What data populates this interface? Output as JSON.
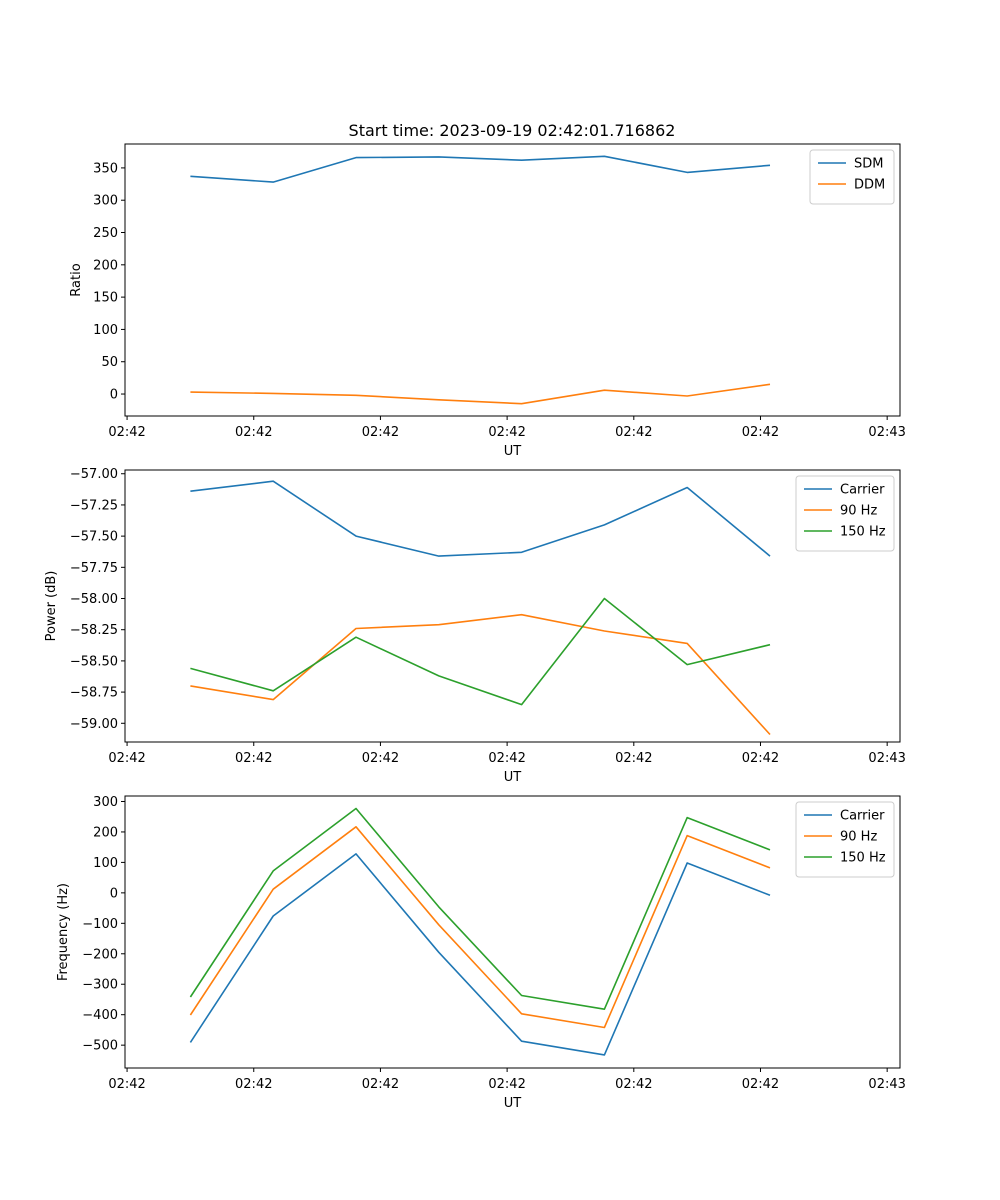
{
  "figure": {
    "title": "Start time: 2023-09-19 02:42:01.716862"
  },
  "chart_data": [
    {
      "type": "line",
      "xlabel": "UT",
      "ylabel": "Ratio",
      "x_index": [
        0,
        1,
        2,
        3,
        4,
        5,
        6,
        7
      ],
      "xlim": [
        -0.79,
        8.57
      ],
      "ylim": [
        -34,
        387
      ],
      "yticks": [
        0,
        50,
        100,
        150,
        200,
        250,
        300,
        350
      ],
      "xticks": [
        {
          "v": -0.765,
          "label": "02:42"
        },
        {
          "v": 0.765,
          "label": "02:42"
        },
        {
          "v": 2.295,
          "label": "02:42"
        },
        {
          "v": 3.825,
          "label": "02:42"
        },
        {
          "v": 5.355,
          "label": "02:42"
        },
        {
          "v": 6.885,
          "label": "02:42"
        },
        {
          "v": 8.415,
          "label": "02:43"
        }
      ],
      "legend_position": "upper right",
      "series": [
        {
          "name": "SDM",
          "color": "#1f77b4",
          "values": [
            337,
            328,
            366,
            367,
            362,
            368,
            343,
            354
          ]
        },
        {
          "name": "DDM",
          "color": "#ff7f0e",
          "values": [
            3,
            1,
            -2,
            -9,
            -15,
            6,
            -3,
            15
          ]
        }
      ]
    },
    {
      "type": "line",
      "xlabel": "UT",
      "ylabel": "Power (dB)",
      "x_index": [
        0,
        1,
        2,
        3,
        4,
        5,
        6,
        7
      ],
      "xlim": [
        -0.79,
        8.57
      ],
      "ylim": [
        -59.15,
        -56.97
      ],
      "yticks": [
        -59.0,
        -58.75,
        -58.5,
        -58.25,
        -58.0,
        -57.75,
        -57.5,
        -57.25,
        -57.0
      ],
      "ytick_labels": [
        "−59.00",
        "−58.75",
        "−58.50",
        "−58.25",
        "−58.00",
        "−57.75",
        "−57.50",
        "−57.25",
        "−57.00"
      ],
      "xticks": [
        {
          "v": -0.765,
          "label": "02:42"
        },
        {
          "v": 0.765,
          "label": "02:42"
        },
        {
          "v": 2.295,
          "label": "02:42"
        },
        {
          "v": 3.825,
          "label": "02:42"
        },
        {
          "v": 5.355,
          "label": "02:42"
        },
        {
          "v": 6.885,
          "label": "02:42"
        },
        {
          "v": 8.415,
          "label": "02:43"
        }
      ],
      "legend_position": "upper right",
      "series": [
        {
          "name": "Carrier",
          "color": "#1f77b4",
          "values": [
            -57.14,
            -57.06,
            -57.5,
            -57.66,
            -57.63,
            -57.41,
            -57.11,
            -57.66
          ]
        },
        {
          "name": "90 Hz",
          "color": "#ff7f0e",
          "values": [
            -58.7,
            -58.81,
            -58.24,
            -58.21,
            -58.13,
            -58.26,
            -58.36,
            -59.09
          ]
        },
        {
          "name": "150 Hz",
          "color": "#2ca02c",
          "values": [
            -58.56,
            -58.74,
            -58.31,
            -58.62,
            -58.85,
            -58.0,
            -58.53,
            -58.37
          ]
        }
      ]
    },
    {
      "type": "line",
      "xlabel": "UT",
      "ylabel": "Frequency (Hz)",
      "x_index": [
        0,
        1,
        2,
        3,
        4,
        5,
        6,
        7
      ],
      "xlim": [
        -0.79,
        8.57
      ],
      "ylim": [
        -575,
        318
      ],
      "yticks": [
        -500,
        -400,
        -300,
        -200,
        -100,
        0,
        100,
        200,
        300
      ],
      "ytick_labels": [
        "−500",
        "−400",
        "−300",
        "−200",
        "−100",
        "0",
        "100",
        "200",
        "300"
      ],
      "xticks": [
        {
          "v": -0.765,
          "label": "02:42"
        },
        {
          "v": 0.765,
          "label": "02:42"
        },
        {
          "v": 2.295,
          "label": "02:42"
        },
        {
          "v": 3.825,
          "label": "02:42"
        },
        {
          "v": 5.355,
          "label": "02:42"
        },
        {
          "v": 6.885,
          "label": "02:42"
        },
        {
          "v": 8.415,
          "label": "02:43"
        }
      ],
      "legend_position": "upper right",
      "series": [
        {
          "name": "Carrier",
          "color": "#1f77b4",
          "values": [
            -491,
            -76,
            128,
            -195,
            -487,
            -532,
            98,
            -8
          ]
        },
        {
          "name": "90 Hz",
          "color": "#ff7f0e",
          "values": [
            -401,
            12,
            217,
            -105,
            -397,
            -442,
            188,
            82
          ]
        },
        {
          "name": "150 Hz",
          "color": "#2ca02c",
          "values": [
            -342,
            72,
            277,
            -46,
            -337,
            -382,
            247,
            141
          ]
        }
      ]
    }
  ]
}
